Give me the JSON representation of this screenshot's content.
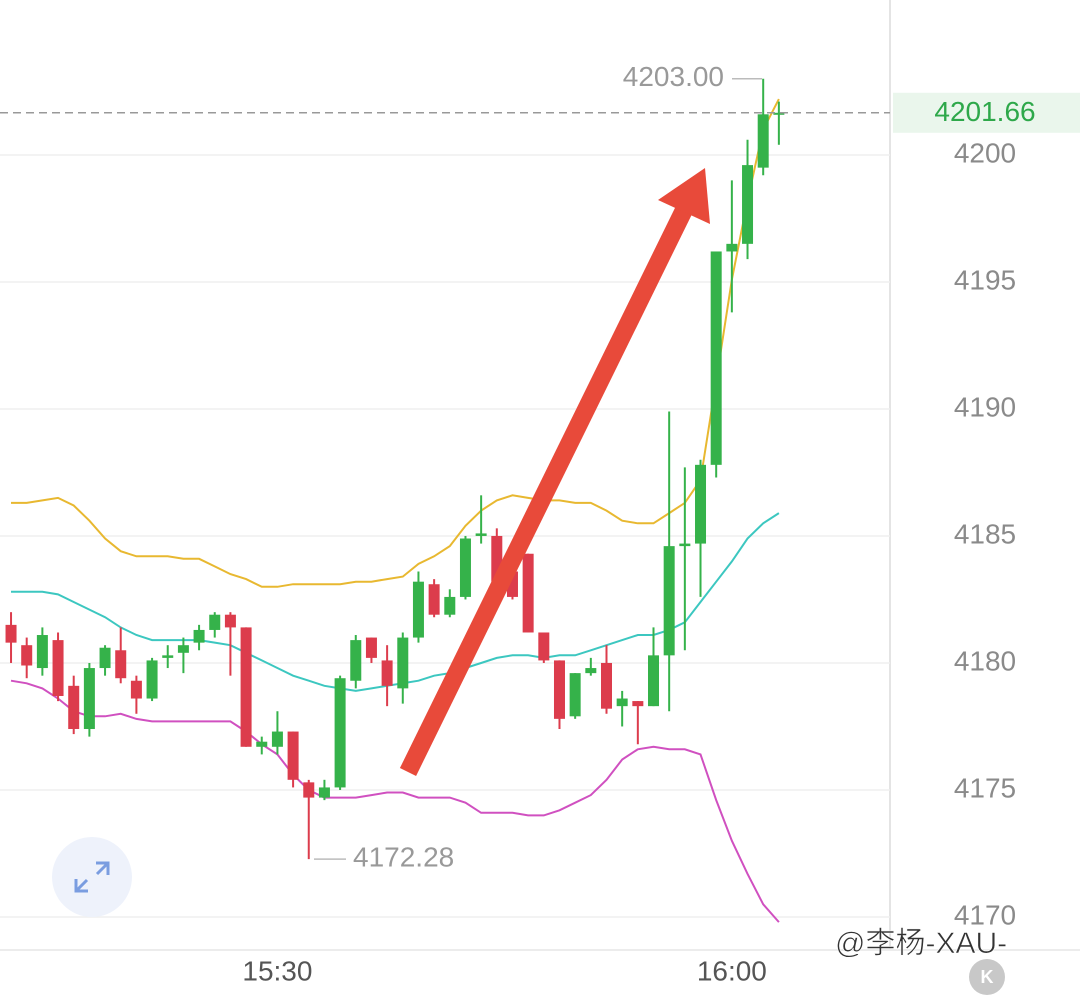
{
  "chart_data": {
    "type": "candlestick",
    "categories": [
      null,
      null,
      null,
      null,
      null,
      null,
      null,
      null,
      null,
      null,
      null,
      null,
      null,
      null,
      null,
      null,
      null,
      "15:30",
      null,
      null,
      null,
      null,
      null,
      null,
      null,
      null,
      null,
      null,
      null,
      null,
      null,
      null,
      null,
      null,
      null,
      null,
      null,
      null,
      null,
      null,
      null,
      null,
      null,
      null,
      null,
      null,
      "16:00",
      null,
      null,
      null
    ],
    "open": [
      4181.5,
      4180.7,
      4179.8,
      4180.9,
      4179.1,
      4177.4,
      4179.8,
      4180.5,
      4179.3,
      4178.6,
      4180.2,
      4180.4,
      4180.8,
      4181.3,
      4181.9,
      4181.4,
      4176.7,
      4176.7,
      4177.3,
      4175.3,
      4174.7,
      4175.1,
      4179.3,
      4181.0,
      4180.1,
      4179.0,
      4181.0,
      4183.1,
      4181.9,
      4182.6,
      4185.0,
      4185.0,
      4183.6,
      4184.3,
      4181.2,
      4180.1,
      4177.9,
      4179.6,
      4180.0,
      4178.3,
      4178.5,
      4178.3,
      4180.3,
      4184.6,
      4184.7,
      4187.8,
      4196.2,
      4196.5,
      4199.5,
      4201.6
    ],
    "high": [
      4182,
      4181,
      4181.4,
      4181.2,
      4179.5,
      4180,
      4180.7,
      4181.4,
      4179.5,
      4180.2,
      4180.7,
      4181,
      4181.5,
      4182,
      4182,
      4181.4,
      4177.1,
      4178.1,
      4177.3,
      4175.4,
      4175.4,
      4179.5,
      4181.1,
      4181,
      4180.7,
      4181.2,
      4183.6,
      4183.3,
      4182.9,
      4185,
      4186.6,
      4185.3,
      4183.8,
      4184.3,
      4181.2,
      4180.1,
      4179.6,
      4180.2,
      4180.7,
      4178.9,
      4178.5,
      4181.4,
      4189.9,
      4187.7,
      4188,
      4196.2,
      4199,
      4200.6,
      4203,
      4202.1
    ],
    "low": [
      4180,
      4179.4,
      4179.5,
      4178.5,
      4177.2,
      4177.1,
      4179.5,
      4179.2,
      4178,
      4178.5,
      4179.8,
      4179.6,
      4180.5,
      4181,
      4179.5,
      4176.7,
      4176.4,
      4176.4,
      4175.1,
      4172.28,
      4174.6,
      4175,
      4179,
      4180,
      4178.3,
      4178.4,
      4180.8,
      4181.8,
      4181.8,
      4182.5,
      4184.7,
      4183,
      4182.5,
      4181.2,
      4180,
      4177.4,
      4177.8,
      4179.5,
      4178,
      4177.5,
      4176.8,
      4178.3,
      4178.1,
      4180.5,
      4182.6,
      4187.3,
      4193.8,
      4195.9,
      4199.2,
      4200.4
    ],
    "close": [
      4180.8,
      4179.9,
      4181.1,
      4178.7,
      4177.4,
      4179.8,
      4180.6,
      4179.4,
      4178.6,
      4180.1,
      4180.3,
      4180.7,
      4181.3,
      4181.9,
      4181.4,
      4176.7,
      4176.9,
      4177.3,
      4175.4,
      4174.7,
      4175.1,
      4179.4,
      4180.9,
      4180.2,
      4179.1,
      4181.0,
      4183.2,
      4181.9,
      4182.6,
      4184.9,
      4185.1,
      4183.2,
      4182.6,
      4181.2,
      4180.1,
      4177.8,
      4179.6,
      4179.8,
      4178.2,
      4178.6,
      4178.3,
      4180.3,
      4184.6,
      4184.7,
      4187.8,
      4196.2,
      4196.5,
      4199.6,
      4201.6,
      4201.66
    ],
    "up_color": "#35b24a",
    "down_color": "#dc3c4c",
    "bands": [
      {
        "color": "#e8b830",
        "values": [
          4186.3,
          4186.3,
          4186.4,
          4186.5,
          4186.2,
          4185.6,
          4184.9,
          4184.4,
          4184.2,
          4184.2,
          4184.2,
          4184.1,
          4184.1,
          4183.8,
          4183.5,
          4183.3,
          4183.0,
          4183.0,
          4183.1,
          4183.1,
          4183.1,
          4183.1,
          4183.2,
          4183.2,
          4183.3,
          4183.4,
          4183.9,
          4184.2,
          4184.6,
          4185.4,
          4186.0,
          4186.4,
          4186.6,
          4186.5,
          4186.4,
          4186.4,
          4186.3,
          4186.3,
          4186.0,
          4185.6,
          4185.5,
          4185.5,
          4185.9,
          4186.3,
          4187.2,
          4191.1,
          4195.1,
          4198.2,
          4201.0,
          4202.2
        ]
      },
      {
        "color": "#3cc7c0",
        "values": [
          4182.8,
          4182.8,
          4182.8,
          4182.7,
          4182.4,
          4182.1,
          4181.8,
          4181.4,
          4181.1,
          4180.9,
          4180.9,
          4180.9,
          4180.9,
          4180.8,
          4180.7,
          4180.4,
          4180.1,
          4179.8,
          4179.5,
          4179.3,
          4179.1,
          4179.0,
          4178.9,
          4179.0,
          4179.1,
          4179.2,
          4179.3,
          4179.5,
          4179.6,
          4179.8,
          4180.0,
          4180.2,
          4180.3,
          4180.3,
          4180.2,
          4180.3,
          4180.3,
          4180.5,
          4180.7,
          4180.9,
          4181.1,
          4181.1,
          4181.3,
          4181.6,
          4182.4,
          4183.2,
          4184.0,
          4184.9,
          4185.5,
          4185.9
        ]
      },
      {
        "color": "#d050c0",
        "values": [
          4179.3,
          4179.2,
          4179.0,
          4178.6,
          4178.1,
          4177.9,
          4177.9,
          4178.0,
          4177.8,
          4177.7,
          4177.7,
          4177.7,
          4177.7,
          4177.7,
          4177.7,
          4177.3,
          4176.8,
          4176.4,
          4175.6,
          4175.0,
          4174.7,
          4174.7,
          4174.7,
          4174.8,
          4174.9,
          4174.9,
          4174.7,
          4174.7,
          4174.7,
          4174.5,
          4174.1,
          4174.1,
          4174.1,
          4174.0,
          4174.0,
          4174.2,
          4174.5,
          4174.8,
          4175.4,
          4176.2,
          4176.6,
          4176.7,
          4176.6,
          4176.6,
          4176.4,
          4174.6,
          4173.0,
          4171.7,
          4170.5,
          4169.8
        ]
      }
    ],
    "ylim": [
      4168.7,
      4206.1
    ],
    "yticks": [
      4170,
      4175,
      4180,
      4185,
      4190,
      4195,
      4200
    ],
    "grid": true,
    "max_label": {
      "value": 4203.0,
      "label": "4203.00"
    },
    "min_label": 4172.28,
    "last_price": 4201.66
  },
  "watermark": "@李杨-XAU-",
  "button": "K"
}
